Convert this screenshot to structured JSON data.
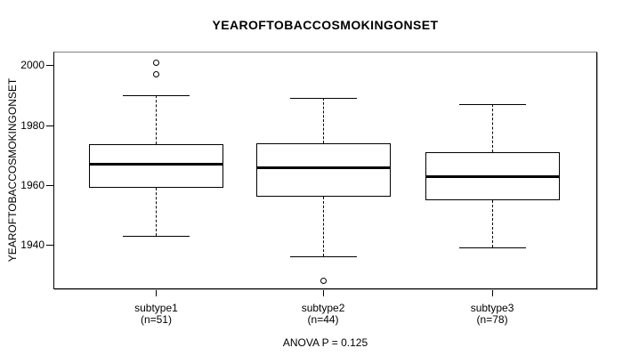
{
  "title": "YEAROFTOBACCOSMOKINGONSET",
  "y_axis_label": "YEAROFTOBACCOSMOKINGONSET",
  "annotation": "ANOVA P = 0.125",
  "chart_data": {
    "type": "boxplot",
    "title": "YEAROFTOBACCOSMOKINGONSET",
    "ylabel": "YEAROFTOBACCOSMOKINGONSET",
    "annotation": "ANOVA P = 0.125",
    "ylim": [
      1925.1,
      2004.6
    ],
    "y_ticks": [
      2000,
      1980,
      1960,
      1940
    ],
    "grid": false,
    "legend": "none",
    "categories": [
      "subtype1",
      "subtype2",
      "subtype3"
    ],
    "groups": [
      {
        "label": "subtype1",
        "sublabel": "(n=51)",
        "n": 51,
        "whisker_low": 1943,
        "q1": 1959,
        "median": 1967,
        "q3": 1973.5,
        "whisker_high": 1990,
        "outliers": [
          1997,
          2001
        ]
      },
      {
        "label": "subtype2",
        "sublabel": "(n=44)",
        "n": 44,
        "whisker_low": 1936,
        "q1": 1956,
        "median": 1966,
        "q3": 1974,
        "whisker_high": 1989,
        "outliers": [
          1928
        ]
      },
      {
        "label": "subtype3",
        "sublabel": "(n=78)",
        "n": 78,
        "whisker_low": 1939,
        "q1": 1955,
        "median": 1963,
        "q3": 1971,
        "whisker_high": 1987,
        "outliers": []
      }
    ],
    "colors": {
      "line": "#000000",
      "background": "#ffffff"
    }
  }
}
